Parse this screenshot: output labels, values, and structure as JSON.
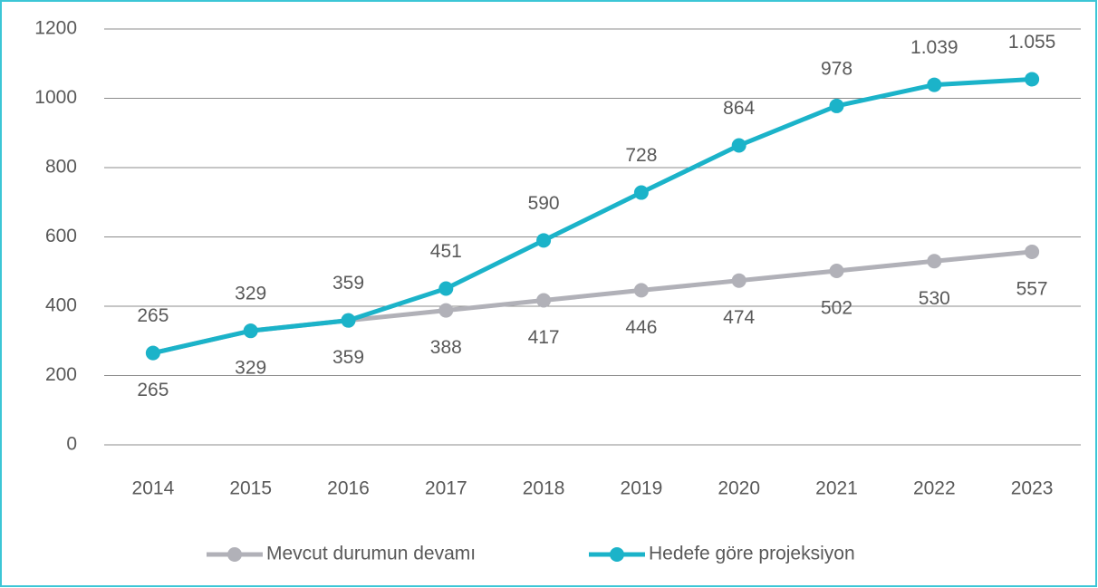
{
  "chart_data": {
    "type": "line",
    "categories": [
      "2014",
      "2015",
      "2016",
      "2017",
      "2018",
      "2019",
      "2020",
      "2021",
      "2022",
      "2023"
    ],
    "series": [
      {
        "name": "Mevcut durumun devamı",
        "color": "#b1b1b8",
        "values": [
          265,
          329,
          359,
          388,
          417,
          446,
          474,
          502,
          530,
          557
        ]
      },
      {
        "name": "Hedefe göre projeksiyon",
        "color": "#1bb3c9",
        "values": [
          265,
          329,
          359,
          451,
          590,
          728,
          864,
          978,
          1039,
          1055
        ],
        "value_labels": [
          "265",
          "329",
          "359",
          "451",
          "590",
          "728",
          "864",
          "978",
          "1.039",
          "1.055"
        ]
      }
    ],
    "ylim": [
      0,
      1200
    ],
    "yticks": [
      0,
      200,
      400,
      600,
      800,
      1000,
      1200
    ],
    "grid": true,
    "legend": "bottom"
  }
}
